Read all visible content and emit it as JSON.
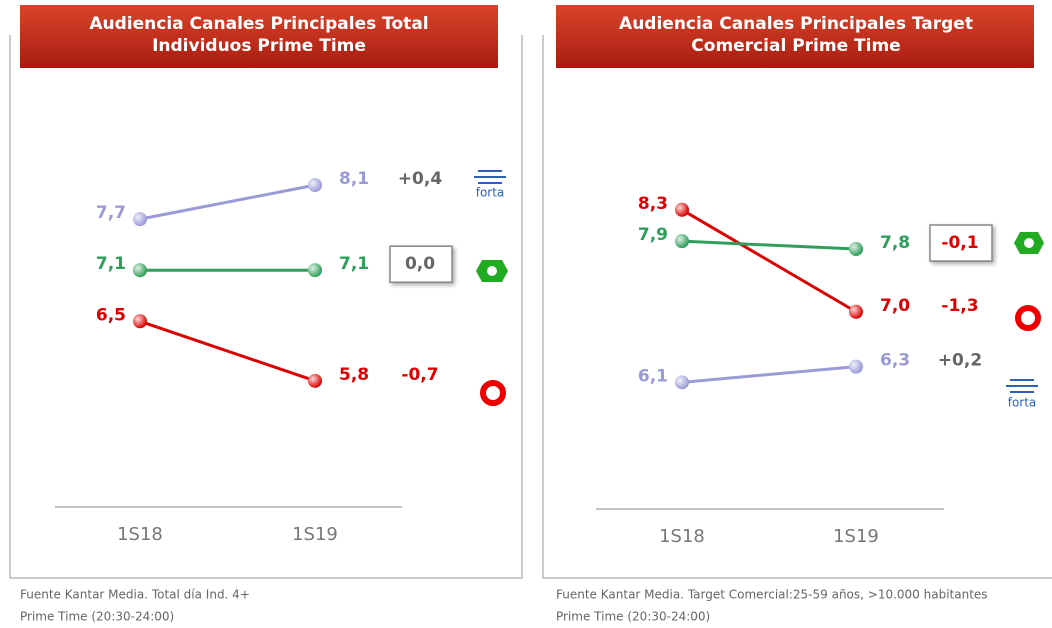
{
  "chart_data": [
    {
      "type": "line",
      "title": [
        "Audiencia Canales Principales Total",
        "Individuos Prime Time"
      ],
      "categories": [
        "1S18",
        "1S19"
      ],
      "ylim": [
        4.4,
        9.1
      ],
      "series": [
        {
          "color": "#9a9ad8",
          "values": [
            7.7,
            8.1
          ],
          "value_labels": [
            "7,7",
            "8,1"
          ],
          "change": "+0,4",
          "change_color": "#666666",
          "boxed": false,
          "logo": "forta"
        },
        {
          "color": "#2e9e5a",
          "values": [
            7.1,
            7.1
          ],
          "value_labels": [
            "7,1",
            "7,1"
          ],
          "change": "0,0",
          "change_color": "#666666",
          "boxed": true
        },
        {
          "color": "#dd0000",
          "values": [
            6.5,
            5.8
          ],
          "value_labels": [
            "6,5",
            "5,8"
          ],
          "change": "-0,7",
          "change_color": "#dd0000",
          "boxed": false
        }
      ],
      "notes": [
        "Fuente Kantar Media. Total día Ind. 4+",
        "Prime Time  (20:30-24:00)"
      ]
    },
    {
      "type": "line",
      "title": [
        "Audiencia Canales Principales Target",
        "Comercial Prime Time"
      ],
      "categories": [
        "1S18",
        "1S19"
      ],
      "ylim": [
        4.6,
        9.7
      ],
      "series": [
        {
          "color": "#dd0000",
          "values": [
            8.3,
            7.0
          ],
          "value_labels": [
            "8,3",
            "7,0"
          ],
          "change": "-1,3",
          "change_color": "#dd0000",
          "boxed": false
        },
        {
          "color": "#2e9e5a",
          "values": [
            7.9,
            7.8
          ],
          "value_labels": [
            "7,9",
            "7,8"
          ],
          "change": "-0,1",
          "change_color": "#dd0000",
          "boxed": true
        },
        {
          "color": "#9a9ad8",
          "values": [
            6.1,
            6.3
          ],
          "value_labels": [
            "6,1",
            "6,3"
          ],
          "change": "+0,2",
          "change_color": "#666666",
          "boxed": false,
          "logo": "forta"
        }
      ],
      "notes": [
        "Fuente Kantar Media. Target Comercial:25-59 años, >10.000 habitantes",
        "Prime Time  (20:30-24:00)"
      ]
    }
  ]
}
